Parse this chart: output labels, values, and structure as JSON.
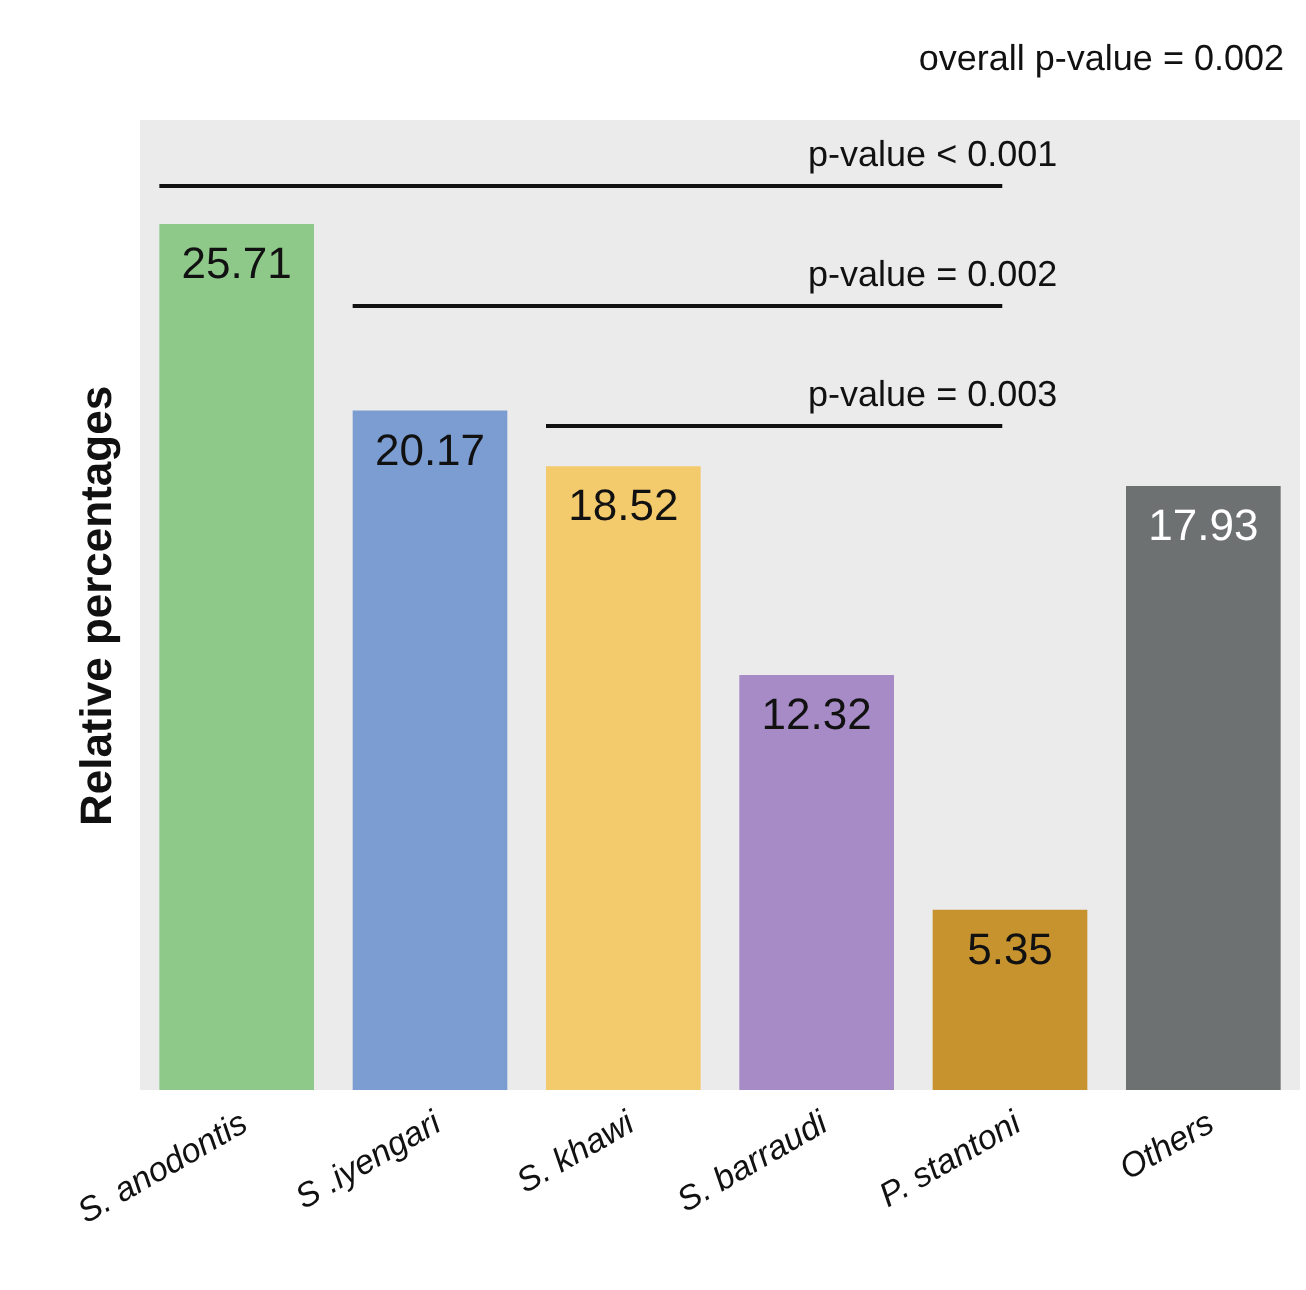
{
  "chart_data": {
    "type": "bar",
    "ylabel": "Relative percentages",
    "categories": [
      "S. anodontis",
      "S .iyengari",
      "S. khawi",
      "S. barraudi",
      "P. stantoni",
      "Others"
    ],
    "values": [
      25.71,
      20.17,
      18.52,
      12.32,
      5.35,
      17.93
    ],
    "colors": [
      "#8ec98a",
      "#7b9dd2",
      "#f4cb6c",
      "#a78bc6",
      "#c6932f",
      "#6e7172"
    ],
    "data_labels": true,
    "annotations": [
      "overall p-value = 0.002",
      "p-value < 0.001",
      "p-value = 0.002",
      "p-value = 0.003"
    ]
  }
}
